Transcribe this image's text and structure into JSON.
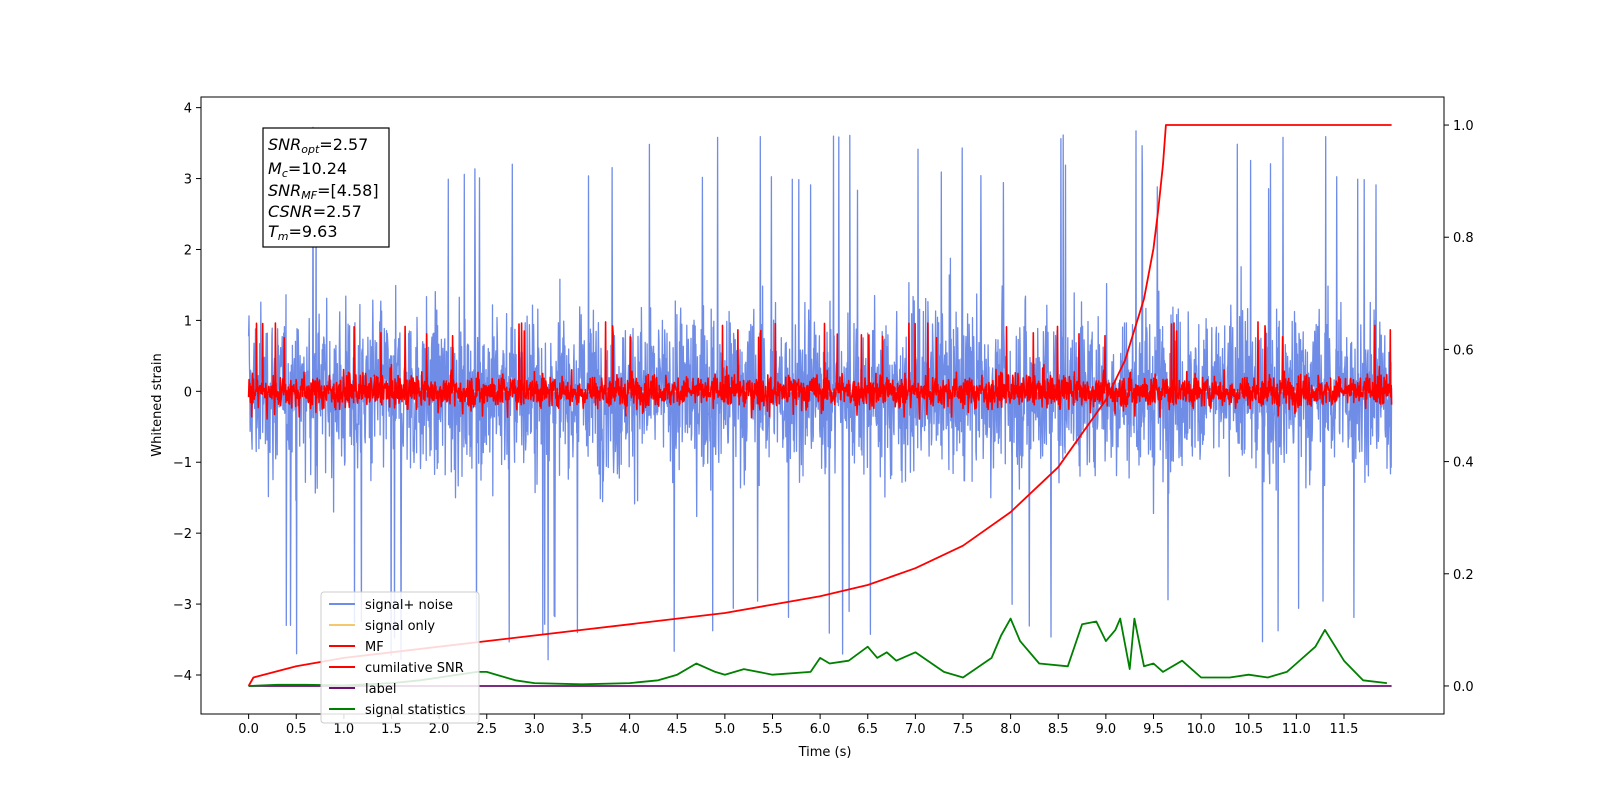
{
  "chart_data": {
    "type": "line",
    "xlabel": "Time (s)",
    "ylabel": "Whitened strain",
    "xlim": [
      -0.5,
      12.55
    ],
    "ylim": [
      -4.55,
      4.15
    ],
    "y2lim": [
      -0.05,
      1.05
    ],
    "x_ticks": [
      0.0,
      0.5,
      1.0,
      1.5,
      2.0,
      2.5,
      3.0,
      3.5,
      4.0,
      4.5,
      5.0,
      5.5,
      6.0,
      6.5,
      7.0,
      7.5,
      8.0,
      8.5,
      9.0,
      9.5,
      10.0,
      10.5,
      11.0,
      11.5
    ],
    "x_tick_labels": [
      "0.0",
      "0.5",
      "1.0",
      "1.5",
      "2.0",
      "2.5",
      "3.0",
      "3.5",
      "4.0",
      "4.5",
      "5.0",
      "5.5",
      "6.0",
      "6.5",
      "7.0",
      "7.5",
      "8.0",
      "8.5",
      "9.0",
      "9.5",
      "10.0",
      "10.5",
      "11.0",
      "11.5"
    ],
    "y_ticks": [
      -4,
      -3,
      -2,
      -1,
      0,
      1,
      2,
      3,
      4
    ],
    "y_tick_labels": [
      "−4",
      "−3",
      "−2",
      "−1",
      "0",
      "1",
      "2",
      "3",
      "4"
    ],
    "y2_ticks": [
      0.0,
      0.2,
      0.4,
      0.6,
      0.8,
      1.0
    ],
    "y2_tick_labels": [
      "0.0",
      "0.2",
      "0.4",
      "0.6",
      "0.8",
      "1.0"
    ],
    "grid": false,
    "legend_position": "lower-left",
    "annotation_lines": [
      {
        "symbol": "SNR",
        "sub": "opt",
        "value": "=2.57"
      },
      {
        "symbol": "M",
        "sub": "c",
        "value": "=10.24"
      },
      {
        "symbol": "SNR",
        "sub": "MF",
        "value": "=[4.58]"
      },
      {
        "symbol": "CSNR",
        "sub": "",
        "value": "=2.57"
      },
      {
        "symbol": "T",
        "sub": "m",
        "value": "=9.63"
      }
    ],
    "series": [
      {
        "name": "signal+ noise",
        "color": "#6f8ce6",
        "axis": "left",
        "style": "noise",
        "x_range": [
          0.0,
          12.0
        ],
        "approx_range": [
          -3.8,
          3.75
        ],
        "typical_amplitude": 1.1
      },
      {
        "name": "signal only",
        "color": "#f5c870",
        "axis": "left",
        "style": "flat",
        "x_range": [
          0.0,
          12.0
        ],
        "value": 0.0
      },
      {
        "name": "MF",
        "color": "#ff0000",
        "axis": "left",
        "style": "noise",
        "x_range": [
          0.0,
          12.0
        ],
        "approx_range": [
          -0.4,
          1.0
        ],
        "typical_amplitude": 0.22
      },
      {
        "name": "cumilative SNR",
        "color": "#ff0000",
        "axis": "right",
        "x": [
          0.0,
          0.05,
          0.5,
          1.0,
          1.5,
          2.0,
          2.5,
          3.0,
          3.5,
          4.0,
          4.5,
          5.0,
          5.5,
          6.0,
          6.5,
          7.0,
          7.5,
          8.0,
          8.5,
          9.0,
          9.2,
          9.4,
          9.5,
          9.55,
          9.6,
          9.63,
          12.0
        ],
        "y": [
          0.0,
          0.015,
          0.035,
          0.05,
          0.06,
          0.07,
          0.08,
          0.09,
          0.1,
          0.11,
          0.12,
          0.13,
          0.145,
          0.16,
          0.18,
          0.21,
          0.25,
          0.31,
          0.39,
          0.51,
          0.58,
          0.69,
          0.78,
          0.85,
          0.93,
          1.0,
          1.0
        ]
      },
      {
        "name": "label",
        "color": "#6a0f6e",
        "axis": "right",
        "x": [
          0.0,
          12.0
        ],
        "y": [
          0.0,
          0.0
        ]
      },
      {
        "name": "signal statistics",
        "color": "#008000",
        "axis": "right",
        "x": [
          0.0,
          0.3,
          0.6,
          1.0,
          1.5,
          1.8,
          2.0,
          2.2,
          2.4,
          2.5,
          2.6,
          2.8,
          3.0,
          3.5,
          4.0,
          4.3,
          4.5,
          4.7,
          4.9,
          5.0,
          5.2,
          5.5,
          5.9,
          6.0,
          6.1,
          6.3,
          6.5,
          6.6,
          6.7,
          6.8,
          7.0,
          7.3,
          7.5,
          7.8,
          7.9,
          8.0,
          8.1,
          8.3,
          8.6,
          8.75,
          8.9,
          9.0,
          9.1,
          9.15,
          9.25,
          9.3,
          9.4,
          9.5,
          9.6,
          9.8,
          10.0,
          10.3,
          10.5,
          10.7,
          10.9,
          11.0,
          11.2,
          11.3,
          11.5,
          11.7,
          11.95
        ],
        "y": [
          0.0,
          0.002,
          0.002,
          0.001,
          0.005,
          0.01,
          0.015,
          0.02,
          0.025,
          0.025,
          0.02,
          0.01,
          0.005,
          0.003,
          0.005,
          0.01,
          0.02,
          0.04,
          0.025,
          0.02,
          0.03,
          0.02,
          0.025,
          0.05,
          0.04,
          0.045,
          0.07,
          0.05,
          0.06,
          0.045,
          0.06,
          0.025,
          0.015,
          0.05,
          0.09,
          0.12,
          0.08,
          0.04,
          0.035,
          0.11,
          0.115,
          0.08,
          0.1,
          0.12,
          0.03,
          0.12,
          0.035,
          0.04,
          0.025,
          0.045,
          0.015,
          0.015,
          0.02,
          0.015,
          0.025,
          0.04,
          0.07,
          0.1,
          0.045,
          0.01,
          0.005
        ]
      }
    ]
  }
}
